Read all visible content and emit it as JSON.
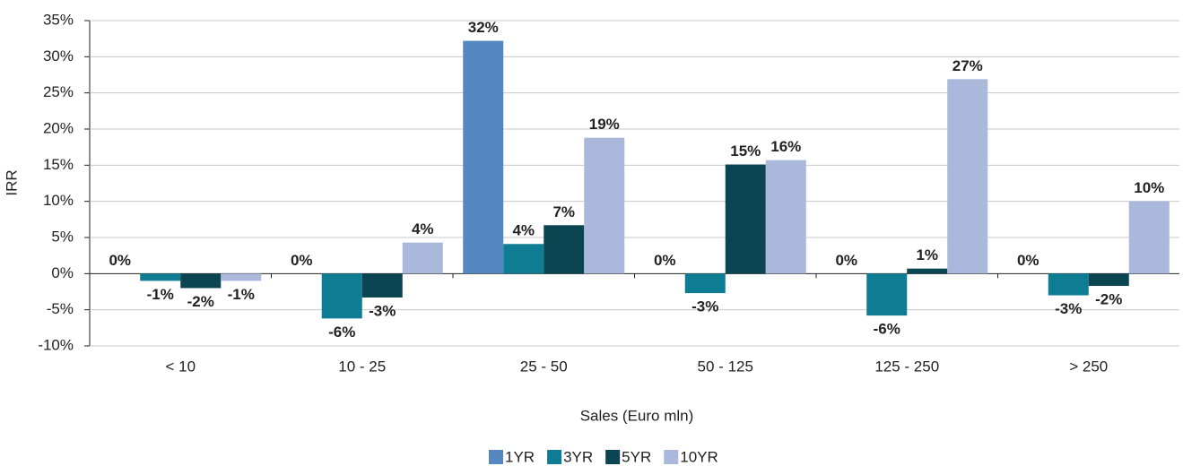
{
  "chart_data": {
    "type": "bar",
    "y_label": "IRR",
    "x_label": "Sales (Euro mln)",
    "categories": [
      "< 10",
      "10 - 25",
      "25 - 50",
      "50 - 125",
      "125 - 250",
      "> 250"
    ],
    "series": [
      {
        "name": "1YR",
        "color": "#5588c0",
        "values": [
          0,
          0,
          32.2,
          0,
          0,
          0
        ],
        "value_labels": [
          "0%",
          "0%",
          "32%",
          "0%",
          "0%",
          "0%"
        ]
      },
      {
        "name": "3YR",
        "color": "#0e7c93",
        "values": [
          -1.0,
          -6.2,
          4.1,
          -2.7,
          -5.8,
          -3.0
        ],
        "value_labels": [
          "-1%",
          "-6%",
          "4%",
          "-3%",
          "-6%",
          "-3%"
        ]
      },
      {
        "name": "5YR",
        "color": "#0b4551",
        "values": [
          -2.0,
          -3.3,
          6.7,
          15.1,
          0.7,
          -1.7
        ],
        "value_labels": [
          "-2%",
          "-3%",
          "7%",
          "15%",
          "1%",
          "-2%"
        ]
      },
      {
        "name": "10YR",
        "color": "#a9b8db",
        "values": [
          -1.0,
          4.3,
          18.8,
          15.7,
          26.9,
          10.0
        ],
        "value_labels": [
          "-1%",
          "4%",
          "19%",
          "16%",
          "27%",
          "10%"
        ]
      }
    ],
    "ylim": [
      -10,
      35
    ],
    "yticks": [
      {
        "value": -10,
        "label": "-10%"
      },
      {
        "value": -5,
        "label": "-5%"
      },
      {
        "value": 0,
        "label": "0%"
      },
      {
        "value": 5,
        "label": "5%"
      },
      {
        "value": 10,
        "label": "10%"
      },
      {
        "value": 15,
        "label": "15%"
      },
      {
        "value": 20,
        "label": "20%"
      },
      {
        "value": 25,
        "label": "25%"
      },
      {
        "value": 30,
        "label": "30%"
      },
      {
        "value": 35,
        "label": "35%"
      }
    ],
    "grid": true
  }
}
